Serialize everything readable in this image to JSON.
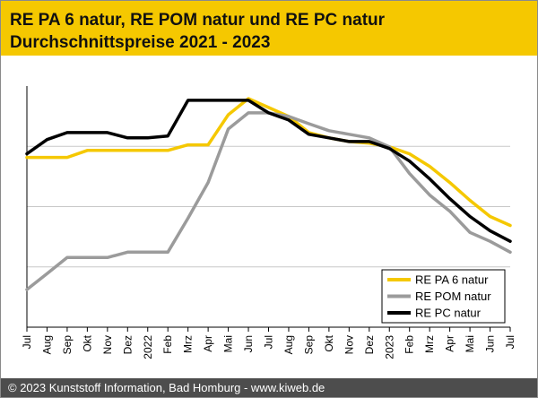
{
  "header": {
    "title_line1": "RE PA 6 natur, RE POM natur und RE PC natur",
    "title_line2": "Durchschnittspreise 2021 - 2023"
  },
  "footer": {
    "copyright": "© 2023 Kunststoff Information, Bad Homburg - www.kiweb.de"
  },
  "chart_data": {
    "type": "line",
    "title": "RE PA 6 natur, RE POM natur und RE PC natur Durchschnittspreise 2021 - 2023",
    "xlabel": "",
    "ylabel": "",
    "ylim": [
      0,
      100
    ],
    "grid": true,
    "legend_position": "bottom-right",
    "categories": [
      "Jul",
      "Aug",
      "Sep",
      "Okt",
      "Nov",
      "Dez",
      "2022",
      "Feb",
      "Mrz",
      "Apr",
      "Mai",
      "Jun",
      "Jul",
      "Aug",
      "Sep",
      "Okt",
      "Nov",
      "Dez",
      "2023",
      "Feb",
      "Mrz",
      "Apr",
      "Mai",
      "Jun",
      "Jul"
    ],
    "series": [
      {
        "name": "RE PA 6 natur",
        "color": "#f5c800",
        "values": [
          70.4,
          70.4,
          70.4,
          73.3,
          73.3,
          73.3,
          73.3,
          73.3,
          75.6,
          75.6,
          88.1,
          94.8,
          91.1,
          87.4,
          80.7,
          78.5,
          77.0,
          76.3,
          74.8,
          71.9,
          66.7,
          60.0,
          52.6,
          45.9,
          42.2
        ]
      },
      {
        "name": "RE POM natur",
        "color": "#9b9b9b",
        "values": [
          15.6,
          22.2,
          28.9,
          28.9,
          28.9,
          31.1,
          31.1,
          31.1,
          45.2,
          60.0,
          82.2,
          88.9,
          88.9,
          87.4,
          84.4,
          81.5,
          80.0,
          78.5,
          74.8,
          63.7,
          54.8,
          48.1,
          39.3,
          35.6,
          31.1
        ]
      },
      {
        "name": "RE PC natur",
        "color": "#000000",
        "values": [
          71.9,
          77.8,
          80.7,
          80.7,
          80.7,
          78.5,
          78.5,
          79.3,
          94.1,
          94.1,
          94.1,
          94.1,
          88.9,
          85.9,
          80.0,
          78.5,
          77.0,
          77.0,
          74.1,
          68.9,
          61.5,
          53.3,
          45.9,
          40.0,
          35.6
        ]
      }
    ]
  }
}
